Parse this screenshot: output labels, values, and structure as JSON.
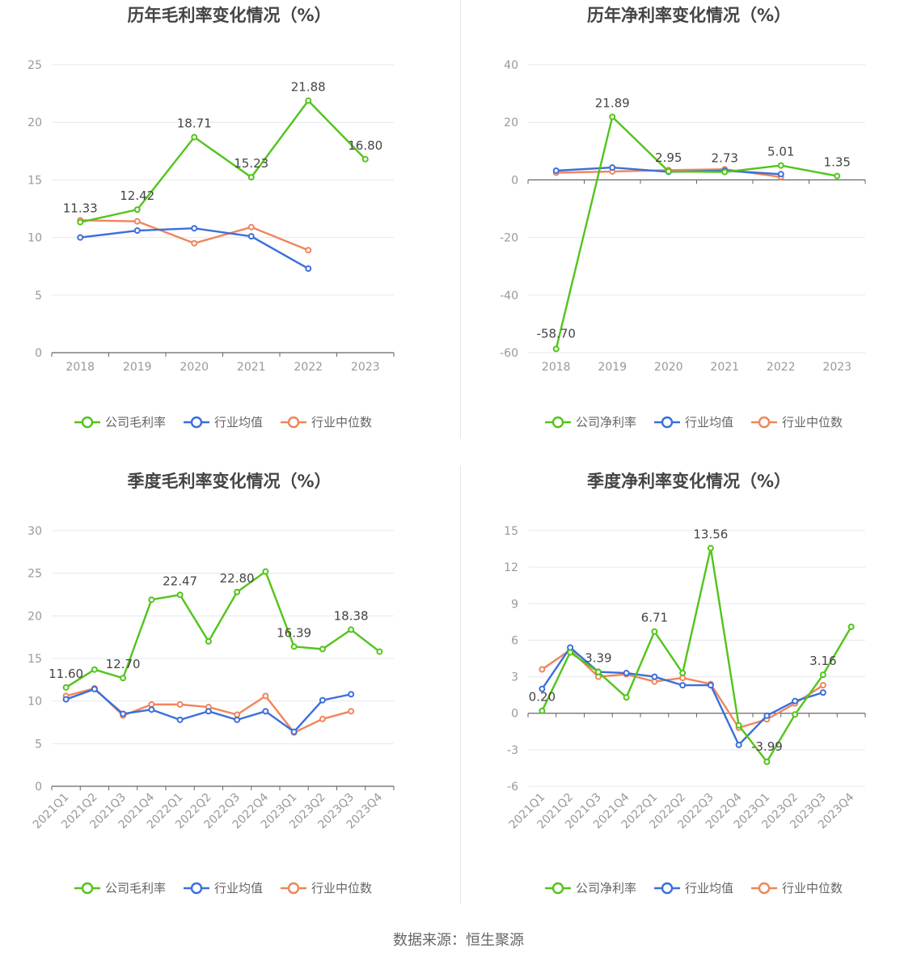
{
  "source_label": "数据来源：恒生聚源",
  "colors": {
    "company": "#52c41a",
    "avg": "#3a6fdb",
    "median": "#f0855c",
    "grid": "#e5e7f0",
    "axis": "#666666",
    "tick_text": "#999999",
    "title": "#444444",
    "label": "#444444"
  },
  "chart_data": [
    {
      "id": "annual-gross",
      "type": "line",
      "title": "历年毛利率变化情况（%）",
      "categories": [
        "2018",
        "2019",
        "2020",
        "2021",
        "2022",
        "2023"
      ],
      "ylim": [
        0,
        25
      ],
      "yticks": [
        0,
        5,
        10,
        15,
        20,
        25
      ],
      "series": [
        {
          "name": "公司毛利率",
          "color": "#52c41a",
          "values": [
            11.33,
            12.42,
            18.71,
            15.23,
            21.88,
            16.8
          ],
          "labels": [
            "11.33",
            "12.42",
            "18.71",
            "15.23",
            "21.88",
            "16.80"
          ]
        },
        {
          "name": "行业均值",
          "color": "#3a6fdb",
          "values": [
            10.0,
            10.6,
            10.8,
            10.1,
            7.3,
            null
          ]
        },
        {
          "name": "行业中位数",
          "color": "#f0855c",
          "values": [
            11.5,
            11.4,
            9.5,
            10.9,
            8.9,
            null
          ]
        }
      ]
    },
    {
      "id": "annual-net",
      "type": "line",
      "title": "历年净利率变化情况（%）",
      "categories": [
        "2018",
        "2019",
        "2020",
        "2021",
        "2022",
        "2023"
      ],
      "ylim": [
        -60,
        40
      ],
      "yticks": [
        -60,
        -40,
        -20,
        0,
        20,
        40
      ],
      "series": [
        {
          "name": "公司净利率",
          "color": "#52c41a",
          "values": [
            -58.7,
            21.89,
            2.95,
            2.73,
            5.01,
            1.35
          ],
          "labels": [
            "-58.70",
            "21.89",
            "2.95",
            "2.73",
            "5.01",
            "1.35"
          ]
        },
        {
          "name": "行业均值",
          "color": "#3a6fdb",
          "values": [
            3.2,
            4.3,
            2.8,
            3.2,
            2.0,
            null
          ]
        },
        {
          "name": "行业中位数",
          "color": "#f0855c",
          "values": [
            2.5,
            2.9,
            3.4,
            3.7,
            1.0,
            null
          ]
        }
      ]
    },
    {
      "id": "quarterly-gross",
      "type": "line",
      "title": "季度毛利率变化情况（%）",
      "categories": [
        "2021Q1",
        "2021Q2",
        "2021Q3",
        "2021Q4",
        "2022Q1",
        "2022Q2",
        "2022Q3",
        "2022Q4",
        "2023Q1",
        "2023Q2",
        "2023Q3",
        "2023Q4"
      ],
      "ylim": [
        0,
        30
      ],
      "yticks": [
        0,
        5,
        10,
        15,
        20,
        25,
        30
      ],
      "series": [
        {
          "name": "公司毛利率",
          "color": "#52c41a",
          "values": [
            11.6,
            13.7,
            12.7,
            21.9,
            22.47,
            17.0,
            22.8,
            25.2,
            16.39,
            16.1,
            18.38,
            15.8
          ],
          "labels": [
            "11.60",
            "",
            "12.70",
            "",
            "22.47",
            "",
            "22.80",
            "",
            "16.39",
            "",
            "18.38",
            ""
          ]
        },
        {
          "name": "行业均值",
          "color": "#3a6fdb",
          "values": [
            10.2,
            11.4,
            8.5,
            9.0,
            7.8,
            8.8,
            7.8,
            8.8,
            6.4,
            10.1,
            10.8,
            null
          ]
        },
        {
          "name": "行业中位数",
          "color": "#f0855c",
          "values": [
            10.6,
            11.5,
            8.3,
            9.6,
            9.6,
            9.3,
            8.4,
            10.6,
            6.3,
            7.9,
            8.8,
            null
          ]
        }
      ]
    },
    {
      "id": "quarterly-net",
      "type": "line",
      "title": "季度净利率变化情况（%）",
      "categories": [
        "2021Q1",
        "2021Q2",
        "2021Q3",
        "2021Q4",
        "2022Q1",
        "2022Q2",
        "2022Q3",
        "2022Q4",
        "2023Q1",
        "2023Q2",
        "2023Q3",
        "2023Q4"
      ],
      "ylim": [
        -6,
        15
      ],
      "yticks": [
        -6,
        -3,
        0,
        3,
        6,
        9,
        12,
        15
      ],
      "series": [
        {
          "name": "公司净利率",
          "color": "#52c41a",
          "values": [
            0.2,
            5.0,
            3.39,
            1.3,
            6.71,
            3.3,
            13.56,
            -1.0,
            -3.99,
            -0.1,
            3.16,
            7.1
          ],
          "labels": [
            "0.20",
            "",
            "3.39",
            "",
            "6.71",
            "",
            "13.56",
            "",
            "-3.99",
            "",
            "3.16",
            ""
          ]
        },
        {
          "name": "行业均值",
          "color": "#3a6fdb",
          "values": [
            2.0,
            5.4,
            3.4,
            3.3,
            3.0,
            2.3,
            2.3,
            -2.6,
            -0.2,
            1.0,
            1.7,
            null
          ]
        },
        {
          "name": "行业中位数",
          "color": "#f0855c",
          "values": [
            3.6,
            5.2,
            3.0,
            3.2,
            2.6,
            2.9,
            2.4,
            -1.2,
            -0.5,
            0.8,
            2.3,
            null
          ]
        }
      ]
    }
  ]
}
